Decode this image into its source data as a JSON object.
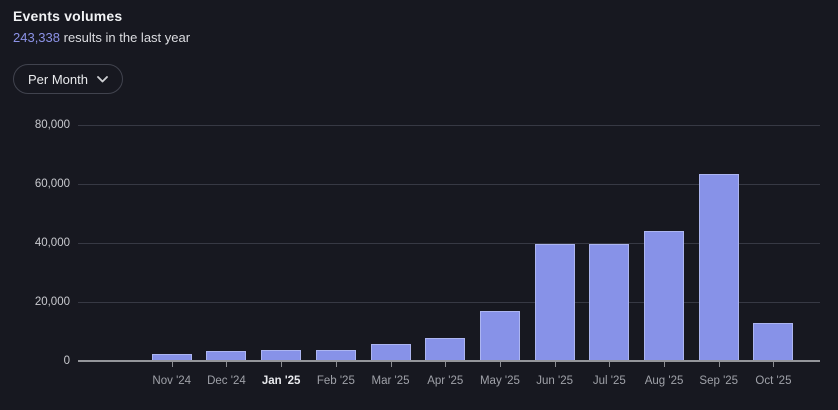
{
  "header": {
    "title": "Events volumes",
    "result_count": "243,338",
    "result_suffix": " results in the last year"
  },
  "controls": {
    "interval_dropdown": {
      "label": "Per Month"
    }
  },
  "colors": {
    "background": "#171820",
    "bar_fill": "#8792e8",
    "bar_edge": "#cbd1f8",
    "accent_text": "#8c92e6",
    "gridline": "#373944",
    "axis_line": "#94959a",
    "x_label": "#9fa1a8",
    "x_label_emphasis": "#e9eaee",
    "y_label": "#c9cacf",
    "title_text": "#f2f3f5",
    "subtitle_text": "#dcdde1",
    "button_border": "#41434e",
    "button_text": "#e9eaec"
  },
  "chart_data": {
    "type": "bar",
    "title": "Events volumes",
    "categories": [
      "Nov '24",
      "Dec '24",
      "Jan '25",
      "Feb '25",
      "Mar '25",
      "Apr '25",
      "May '25",
      "Jun '25",
      "Jul '25",
      "Aug '25",
      "Sep '25",
      "Oct '25"
    ],
    "values": [
      2540,
      3450,
      3700,
      3750,
      5600,
      7800,
      17000,
      39600,
      39500,
      44200,
      63400,
      12800
    ],
    "total_label": "243,338",
    "emphasized_category": "Jan '25",
    "xlabel": "",
    "ylabel": "",
    "ylim": [
      0,
      80000
    ],
    "y_ticks": [
      0,
      20000,
      40000,
      60000,
      80000
    ],
    "y_tick_labels": [
      "0",
      "20,000",
      "40,000",
      "60,000",
      "80,000"
    ],
    "grid": "horizontal",
    "legend": "none"
  }
}
